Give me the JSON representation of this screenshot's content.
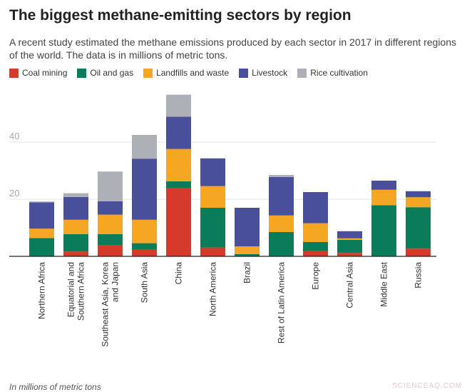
{
  "chart_data": {
    "type": "bar",
    "stacked": true,
    "title": "The biggest methane-emitting sectors by region",
    "subtitle": "A recent study estimated the methane emissions produced by each sector in 2017 in different regions of the world. The data is in millions of metric tons.",
    "note": "In millions of metric tons",
    "categories": [
      "Northern Africa",
      "Equatorial and Southern Africa",
      "Southeast Asia, Korea and Japan",
      "South Asia",
      "China",
      "North America",
      "Brazil",
      "Rest of Latin America",
      "Europe",
      "Central Asia",
      "Middle East",
      "Russia"
    ],
    "series": [
      {
        "name": "Coal mining",
        "color": "#d63a2a",
        "values": [
          0,
          1.7,
          3.9,
          2.5,
          24,
          3.1,
          0,
          0,
          2,
          1.2,
          0,
          2.7
        ]
      },
      {
        "name": "Oil and gas",
        "color": "#0a7c5a",
        "values": [
          6.4,
          6.1,
          3.9,
          2.1,
          2.3,
          13.9,
          0.8,
          8.5,
          3,
          4.6,
          17.9,
          14.5
        ]
      },
      {
        "name": "Landfills and waste",
        "color": "#f5a623",
        "values": [
          3.3,
          5,
          6.8,
          8.2,
          11.3,
          7.6,
          2.7,
          5.8,
          6.6,
          0.5,
          5.4,
          3.5
        ]
      },
      {
        "name": "Livestock",
        "color": "#4a4f9c",
        "values": [
          9.2,
          8,
          4.7,
          21.4,
          11.3,
          9.7,
          13.5,
          13.5,
          10.9,
          2.5,
          3.2,
          2.1
        ]
      },
      {
        "name": "Rice cultivation",
        "color": "#aeb0b8",
        "values": [
          0.3,
          1.3,
          10.4,
          8.3,
          7.7,
          0,
          0,
          0.7,
          0,
          0,
          0,
          0
        ]
      }
    ],
    "yticks": [
      20,
      40
    ],
    "ylim": [
      0,
      57
    ],
    "grid": true,
    "legend": "top"
  },
  "watermark": "SCIENCEAQ.COM"
}
